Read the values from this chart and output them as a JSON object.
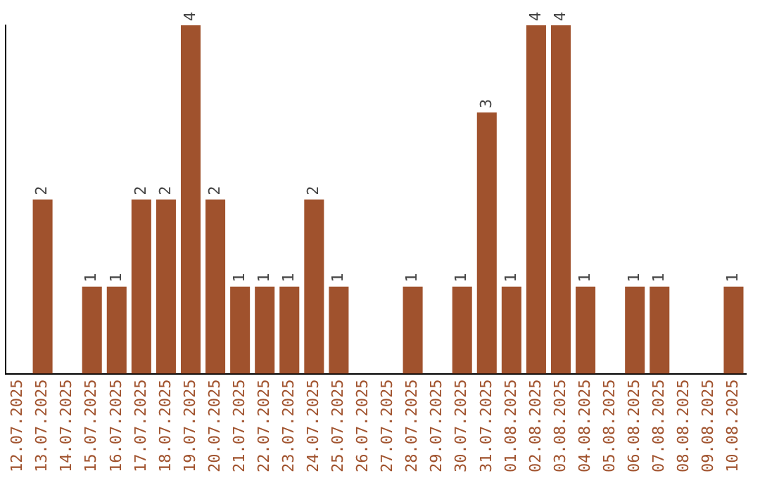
{
  "chart_data": {
    "type": "bar",
    "categories": [
      "12.07.2025",
      "13.07.2025",
      "14.07.2025",
      "15.07.2025",
      "16.07.2025",
      "17.07.2025",
      "18.07.2025",
      "19.07.2025",
      "20.07.2025",
      "21.07.2025",
      "22.07.2025",
      "23.07.2025",
      "24.07.2025",
      "25.07.2025",
      "26.07.2025",
      "27.07.2025",
      "28.07.2025",
      "29.07.2025",
      "30.07.2025",
      "31.07.2025",
      "01.08.2025",
      "02.08.2025",
      "03.08.2025",
      "04.08.2025",
      "05.08.2025",
      "06.08.2025",
      "07.08.2025",
      "08.08.2025",
      "09.08.2025",
      "10.08.2025"
    ],
    "values": [
      0,
      2,
      0,
      1,
      1,
      2,
      2,
      4,
      2,
      1,
      1,
      1,
      2,
      1,
      0,
      0,
      1,
      0,
      1,
      3,
      1,
      4,
      4,
      1,
      0,
      1,
      1,
      0,
      0,
      1
    ],
    "value_labels": [
      null,
      "2",
      null,
      "1",
      "1",
      "2",
      "2",
      "4",
      "2",
      "1",
      "1",
      "1",
      "2",
      "1",
      null,
      null,
      "1",
      null,
      "1",
      "3",
      "1",
      "4",
      "4",
      "1",
      null,
      "1",
      "1",
      null,
      null,
      "1"
    ],
    "color": "#a0522d",
    "grid": false,
    "legend": false,
    "tick_labels": "x"
  }
}
